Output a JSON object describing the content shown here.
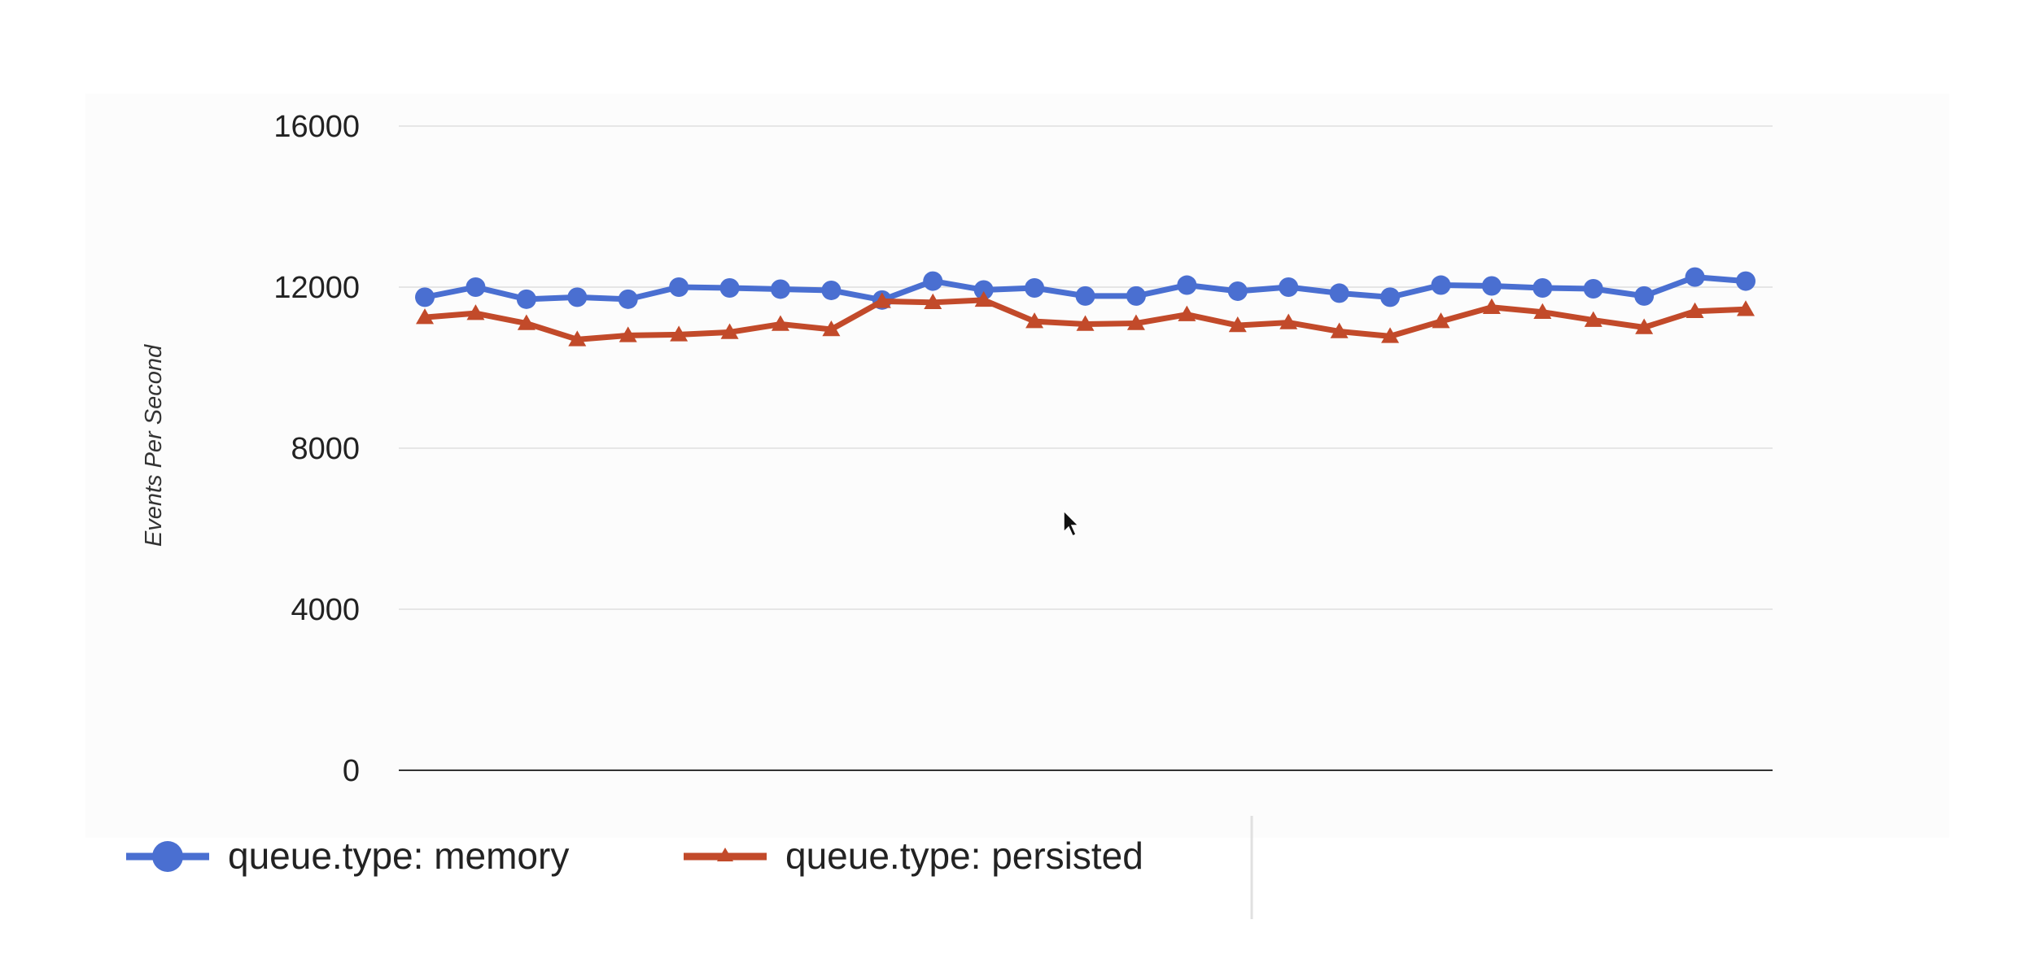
{
  "chart_data": {
    "type": "line",
    "title": "",
    "xlabel": "",
    "ylabel": "Events Per Second",
    "ylim": [
      0,
      16000
    ],
    "yticks": [
      0,
      4000,
      8000,
      12000,
      16000
    ],
    "grid": true,
    "legend_position": "bottom",
    "series": [
      {
        "name": "queue.type: memory",
        "color": "#4a6fd1",
        "marker": "circle",
        "values": [
          11750,
          12000,
          11700,
          11750,
          11700,
          12000,
          11980,
          11950,
          11920,
          11680,
          12150,
          11930,
          11980,
          11780,
          11780,
          12050,
          11900,
          12000,
          11850,
          11750,
          12050,
          12030,
          11980,
          11960,
          11780,
          12250,
          12150
        ]
      },
      {
        "name": "queue.type: persisted",
        "color": "#c24a2a",
        "marker": "triangle",
        "values": [
          11250,
          11350,
          11100,
          10700,
          10800,
          10820,
          10880,
          11080,
          10950,
          11650,
          11620,
          11680,
          11150,
          11080,
          11100,
          11320,
          11050,
          11120,
          10900,
          10780,
          11150,
          11500,
          11380,
          11180,
          11000,
          11400,
          11450
        ]
      }
    ]
  }
}
